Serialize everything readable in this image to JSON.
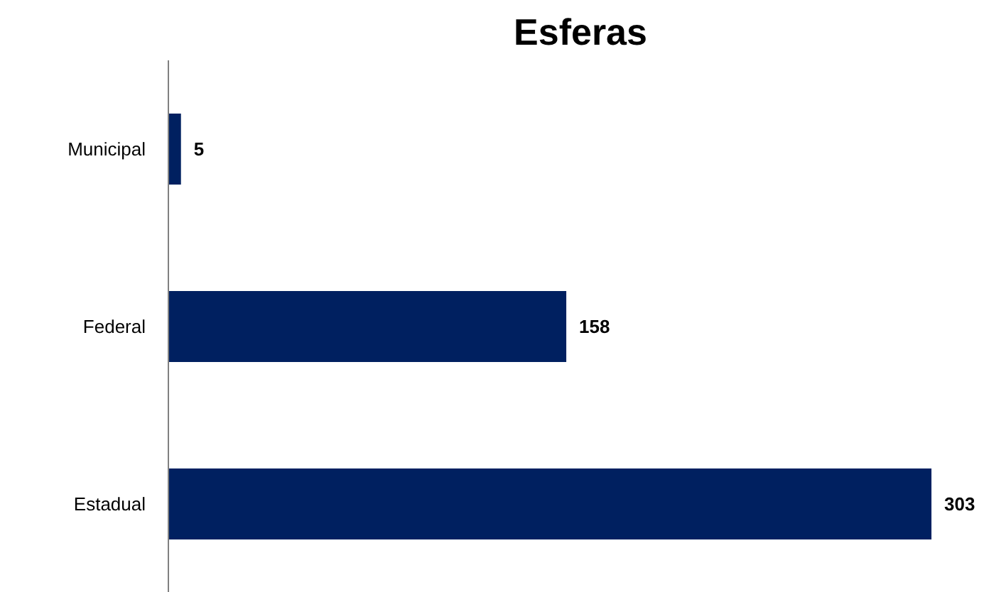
{
  "chart_data": {
    "type": "bar",
    "orientation": "horizontal",
    "title": "Esferas",
    "categories": [
      "Municipal",
      "Federal",
      "Estadual"
    ],
    "values": [
      5,
      158,
      303
    ],
    "color": "#002060",
    "data_labels": true,
    "tick_labels": "y"
  }
}
